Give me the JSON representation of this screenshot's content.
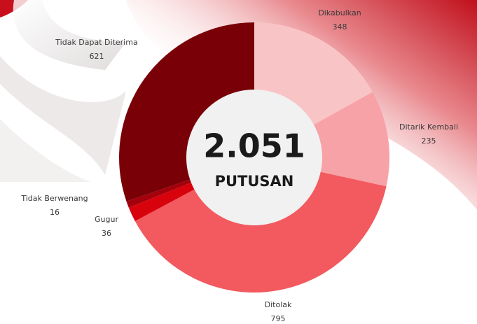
{
  "chart_data": {
    "type": "donut",
    "center_title": "2.051",
    "center_subtitle": "PUTUSAN",
    "categories": [
      "Dikabulkan",
      "Ditarik Kembali",
      "Ditolak",
      "Gugur",
      "Tidak Berwenang",
      "Tidak Dapat Diterima"
    ],
    "values": [
      348,
      235,
      795,
      36,
      16,
      621
    ],
    "colors": [
      "#f9c4c6",
      "#f7a2a7",
      "#f25a5f",
      "#d8020d",
      "#a4000c",
      "#7a0008"
    ]
  }
}
